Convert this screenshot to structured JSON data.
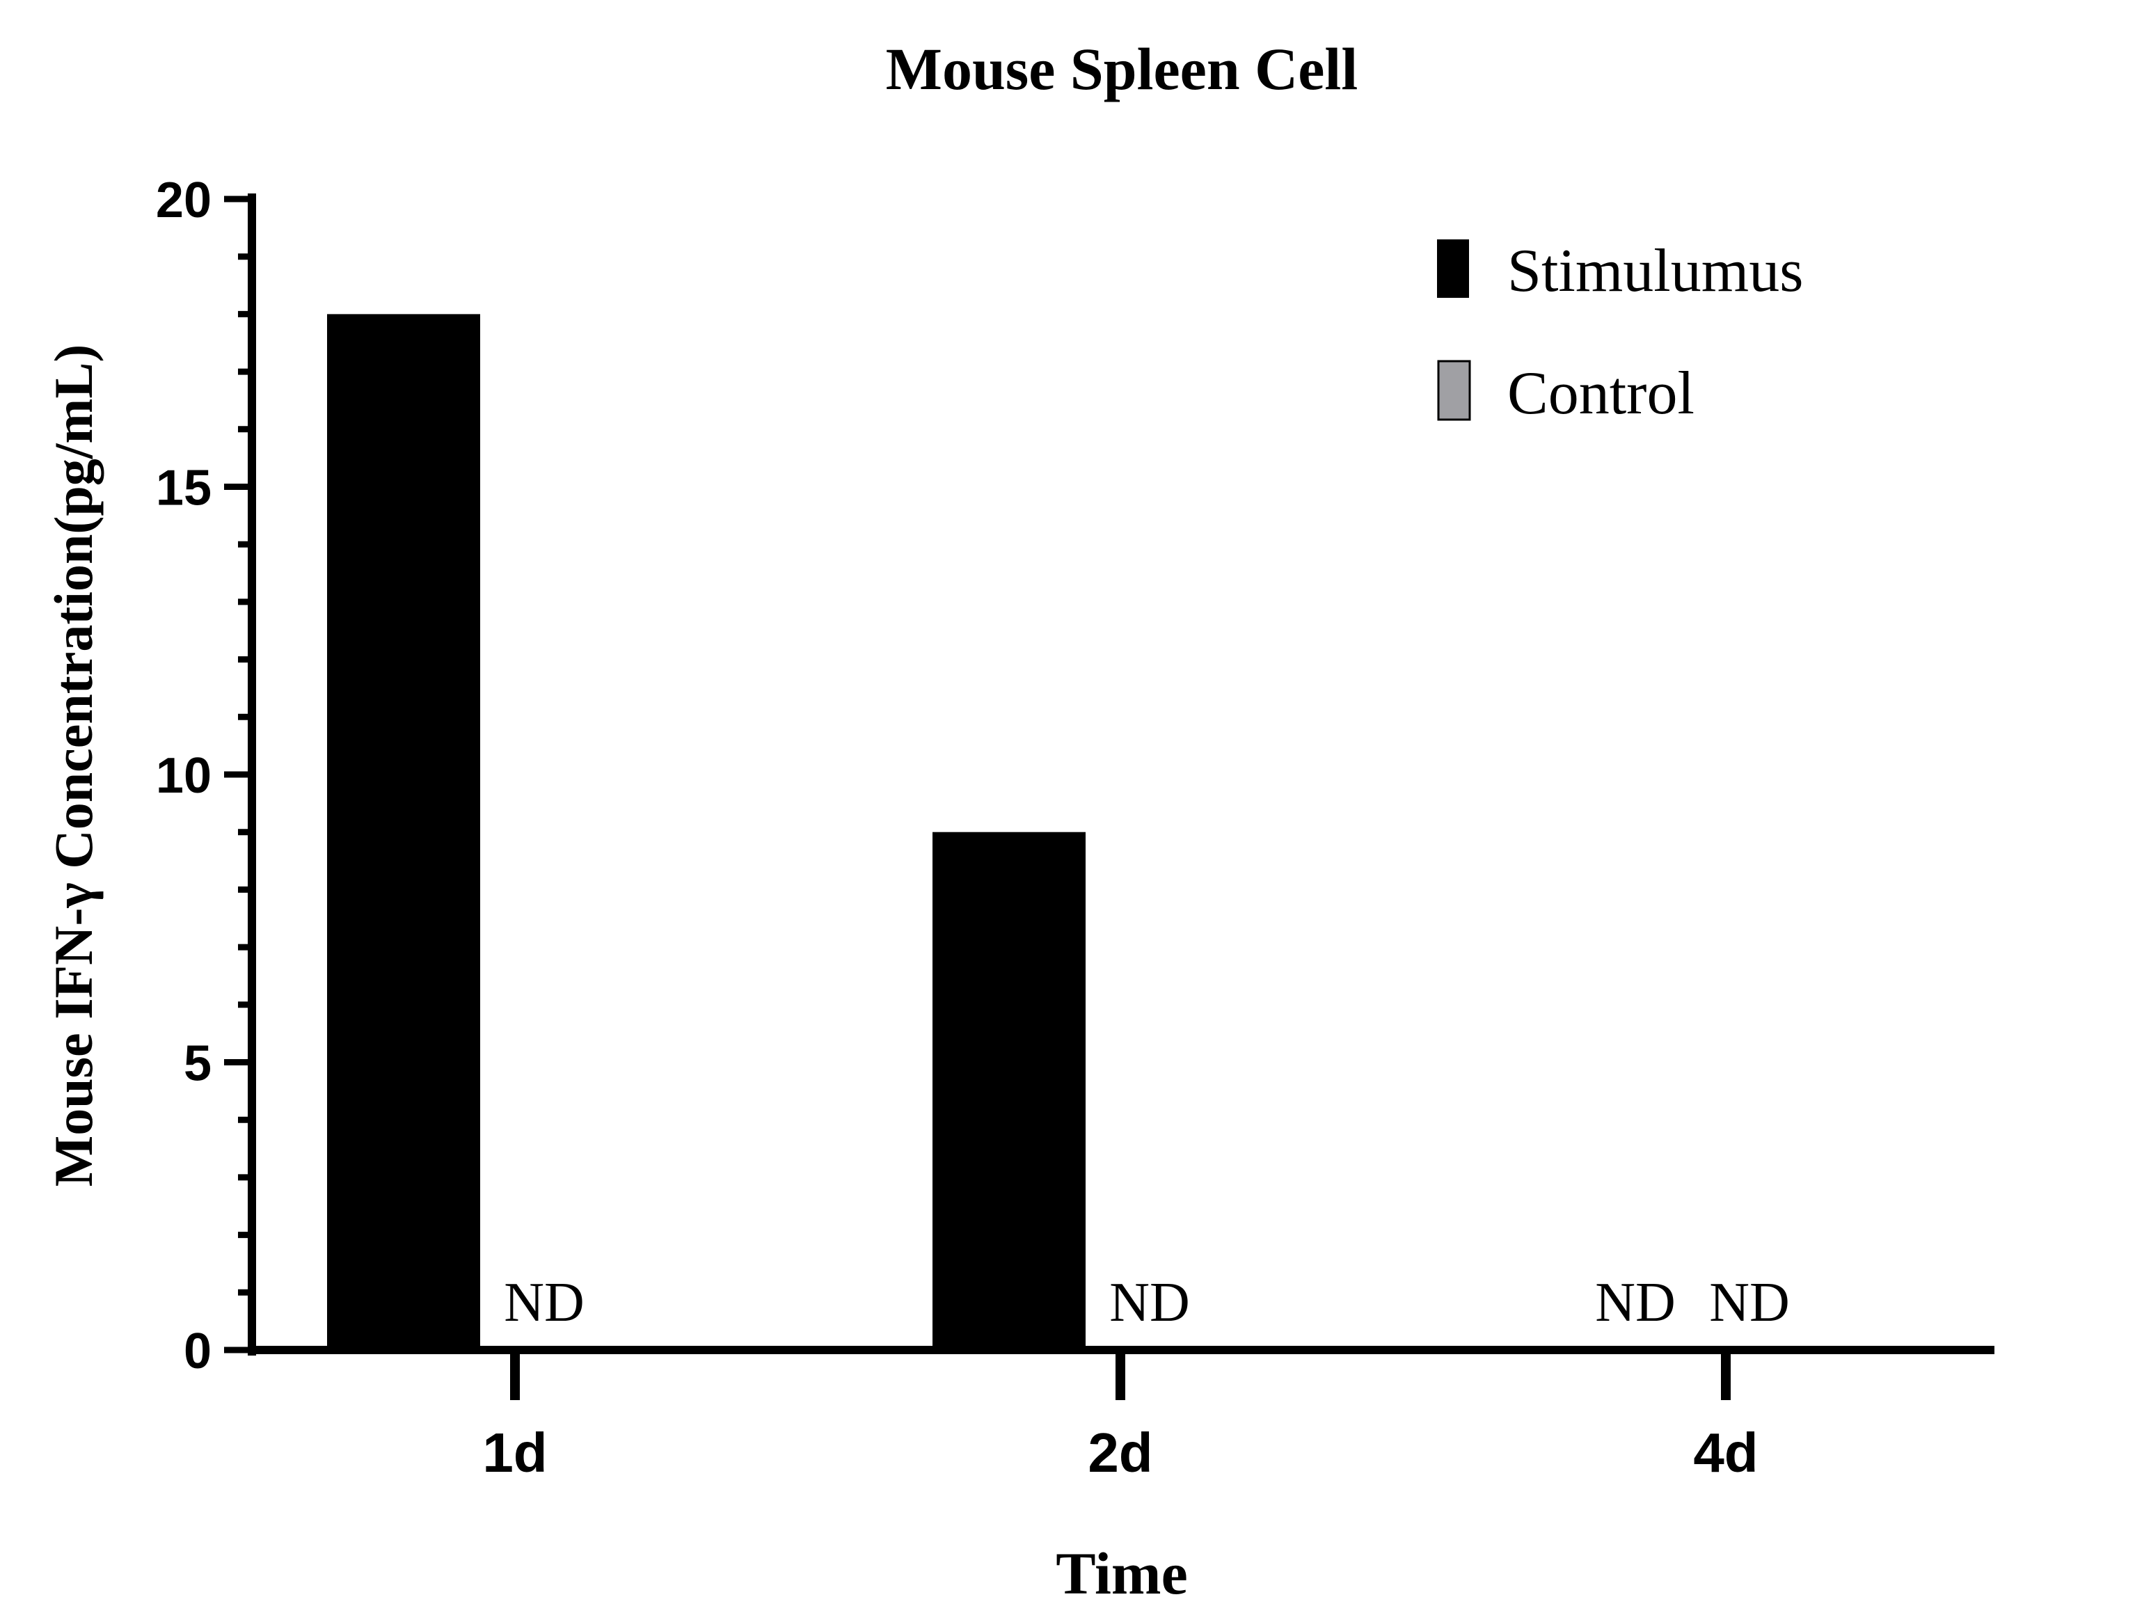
{
  "chart_data": {
    "type": "bar",
    "title": "Mouse Spleen Cell",
    "xlabel": "Time",
    "ylabel": "Mouse IFN-γ Concentration(pg/mL)",
    "categories": [
      "1d",
      "2d",
      "4d"
    ],
    "ylim": [
      0,
      20
    ],
    "yticks": [
      "0",
      "5",
      "10",
      "15",
      "20"
    ],
    "minor_tick_step": 1,
    "grid": false,
    "legend_position": "top-right",
    "series": [
      {
        "name": "Stimulumus",
        "color": "#000000",
        "values": [
          18,
          9,
          null
        ],
        "labels": [
          "",
          "",
          "ND"
        ]
      },
      {
        "name": "Control",
        "color": "#a0a0a4",
        "values": [
          null,
          null,
          null
        ],
        "labels": [
          "ND",
          "ND",
          "ND"
        ]
      }
    ]
  }
}
